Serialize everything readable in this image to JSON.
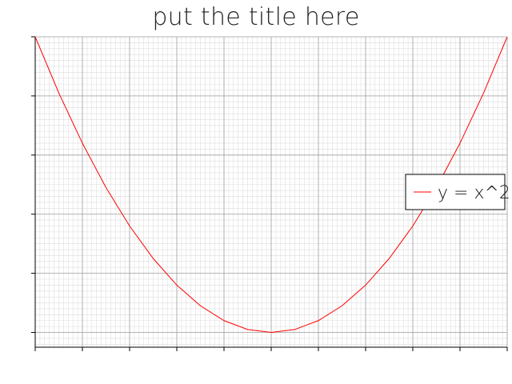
{
  "chart_data": {
    "type": "line",
    "title": "put the title here",
    "xlabel": "",
    "ylabel": "",
    "xlim": [
      -1,
      1
    ],
    "ylim": [
      -0.05,
      1
    ],
    "x_major_ticks": [
      -1,
      -0.8,
      -0.6,
      -0.4,
      -0.2,
      0,
      0.2,
      0.4,
      0.6,
      0.8,
      1
    ],
    "y_major_ticks": [
      0,
      0.2,
      0.4,
      0.6,
      0.8,
      1
    ],
    "tick_labels_visible": false,
    "grid": {
      "major": true,
      "minor": true
    },
    "legend": {
      "placement": "right"
    },
    "series": [
      {
        "name": "y = x^2",
        "color": "#ff0000",
        "x": [
          -1,
          -0.9,
          -0.8,
          -0.7,
          -0.6,
          -0.5,
          -0.4,
          -0.3,
          -0.2,
          -0.1,
          0,
          0.1,
          0.2,
          0.3,
          0.4,
          0.5,
          0.6,
          0.7,
          0.8,
          0.9,
          1
        ],
        "y": [
          1,
          0.81,
          0.64,
          0.49,
          0.36,
          0.25,
          0.16,
          0.09,
          0.04,
          0.01,
          0,
          0.01,
          0.04,
          0.09,
          0.16,
          0.25,
          0.36,
          0.49,
          0.64,
          0.81,
          1
        ]
      }
    ]
  }
}
